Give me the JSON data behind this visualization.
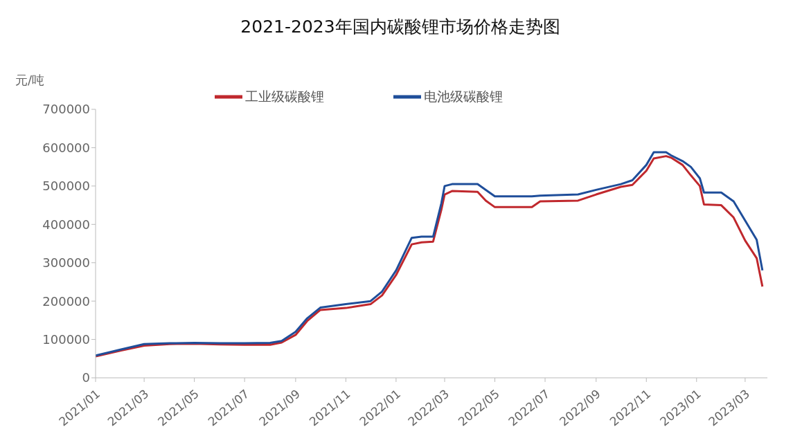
{
  "chart_data": {
    "type": "line",
    "title": "2021-2023年国内碳酸锂市场价格走势图",
    "ylabel": "元/吨",
    "x": [
      "2021-01-01",
      "2021-02-01",
      "2021-03-01",
      "2021-04-01",
      "2021-05-01",
      "2021-06-01",
      "2021-07-01",
      "2021-08-01",
      "2021-08-15",
      "2021-09-01",
      "2021-09-15",
      "2021-10-01",
      "2021-11-01",
      "2021-12-01",
      "2021-12-15",
      "2022-01-01",
      "2022-01-20",
      "2022-02-01",
      "2022-02-15",
      "2022-02-25",
      "2022-03-01",
      "2022-03-10",
      "2022-04-10",
      "2022-04-20",
      "2022-05-01",
      "2022-06-15",
      "2022-06-25",
      "2022-08-10",
      "2022-09-01",
      "2022-10-01",
      "2022-10-15",
      "2022-11-01",
      "2022-11-10",
      "2022-11-25",
      "2022-12-01",
      "2022-12-15",
      "2022-12-25",
      "2023-01-05",
      "2023-01-10",
      "2023-01-31",
      "2023-02-15",
      "2023-03-01",
      "2023-03-15",
      "2023-03-22"
    ],
    "series": [
      {
        "name": "工业级碳酸锂",
        "color": "#c0282d",
        "values": [
          56000,
          71000,
          84000,
          88000,
          89000,
          87000,
          86000,
          86000,
          92000,
          112000,
          148000,
          177000,
          182000,
          192000,
          215000,
          268000,
          348000,
          353000,
          355000,
          438000,
          478000,
          487000,
          485000,
          462000,
          445000,
          445000,
          460000,
          462000,
          478000,
          498000,
          503000,
          540000,
          572000,
          578000,
          574000,
          555000,
          528000,
          500000,
          452000,
          450000,
          418000,
          358000,
          312000,
          238000
        ]
      },
      {
        "name": "电池级碳酸锂",
        "color": "#1f4e9a",
        "values": [
          58000,
          74000,
          88000,
          90000,
          91000,
          90000,
          90000,
          91000,
          96000,
          120000,
          155000,
          183000,
          192000,
          200000,
          225000,
          280000,
          365000,
          368000,
          368000,
          455000,
          500000,
          505000,
          505000,
          490000,
          473000,
          473000,
          475000,
          478000,
          490000,
          505000,
          515000,
          555000,
          588000,
          588000,
          580000,
          565000,
          550000,
          520000,
          483000,
          483000,
          460000,
          410000,
          360000,
          280000
        ]
      }
    ],
    "xlim": [
      "2021-01-01",
      "2023-03-28"
    ],
    "xticks": [
      {
        "value": "2021-01-01",
        "label": "2021/01"
      },
      {
        "value": "2021-03-01",
        "label": "2021/03"
      },
      {
        "value": "2021-05-01",
        "label": "2021/05"
      },
      {
        "value": "2021-07-01",
        "label": "2021/07"
      },
      {
        "value": "2021-09-01",
        "label": "2021/09"
      },
      {
        "value": "2021-11-01",
        "label": "2021/11"
      },
      {
        "value": "2022-01-01",
        "label": "2022/01"
      },
      {
        "value": "2022-03-01",
        "label": "2022/03"
      },
      {
        "value": "2022-05-01",
        "label": "2022/05"
      },
      {
        "value": "2022-07-01",
        "label": "2022/07"
      },
      {
        "value": "2022-09-01",
        "label": "2022/09"
      },
      {
        "value": "2022-11-01",
        "label": "2022/11"
      },
      {
        "value": "2023-01-01",
        "label": "2023/01"
      },
      {
        "value": "2023-03-01",
        "label": "2023/03"
      }
    ],
    "ylim": [
      0,
      700000
    ],
    "yticks": [
      0,
      100000,
      200000,
      300000,
      400000,
      500000,
      600000,
      700000
    ],
    "grid": false,
    "legend": "top",
    "marker": "none",
    "line_style": "solid"
  }
}
